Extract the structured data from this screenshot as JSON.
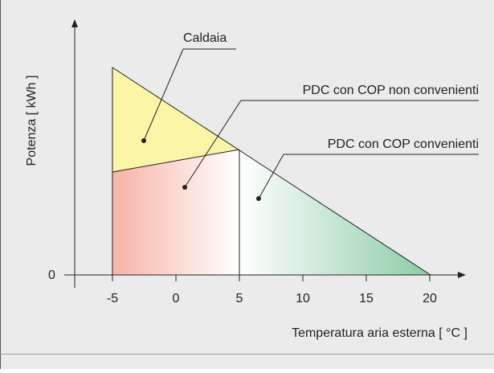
{
  "axes": {
    "y_label": "Potenza  [ kWh ]",
    "x_label": "Temperatura aria esterna  [ °C ]",
    "y_ticks": [
      0
    ],
    "x_ticks": [
      -5,
      0,
      5,
      10,
      15,
      20
    ]
  },
  "regions": [
    {
      "label": "Caldaia"
    },
    {
      "label": "PDC con COP non convenienti"
    },
    {
      "label": "PDC con COP convenienti"
    }
  ]
}
